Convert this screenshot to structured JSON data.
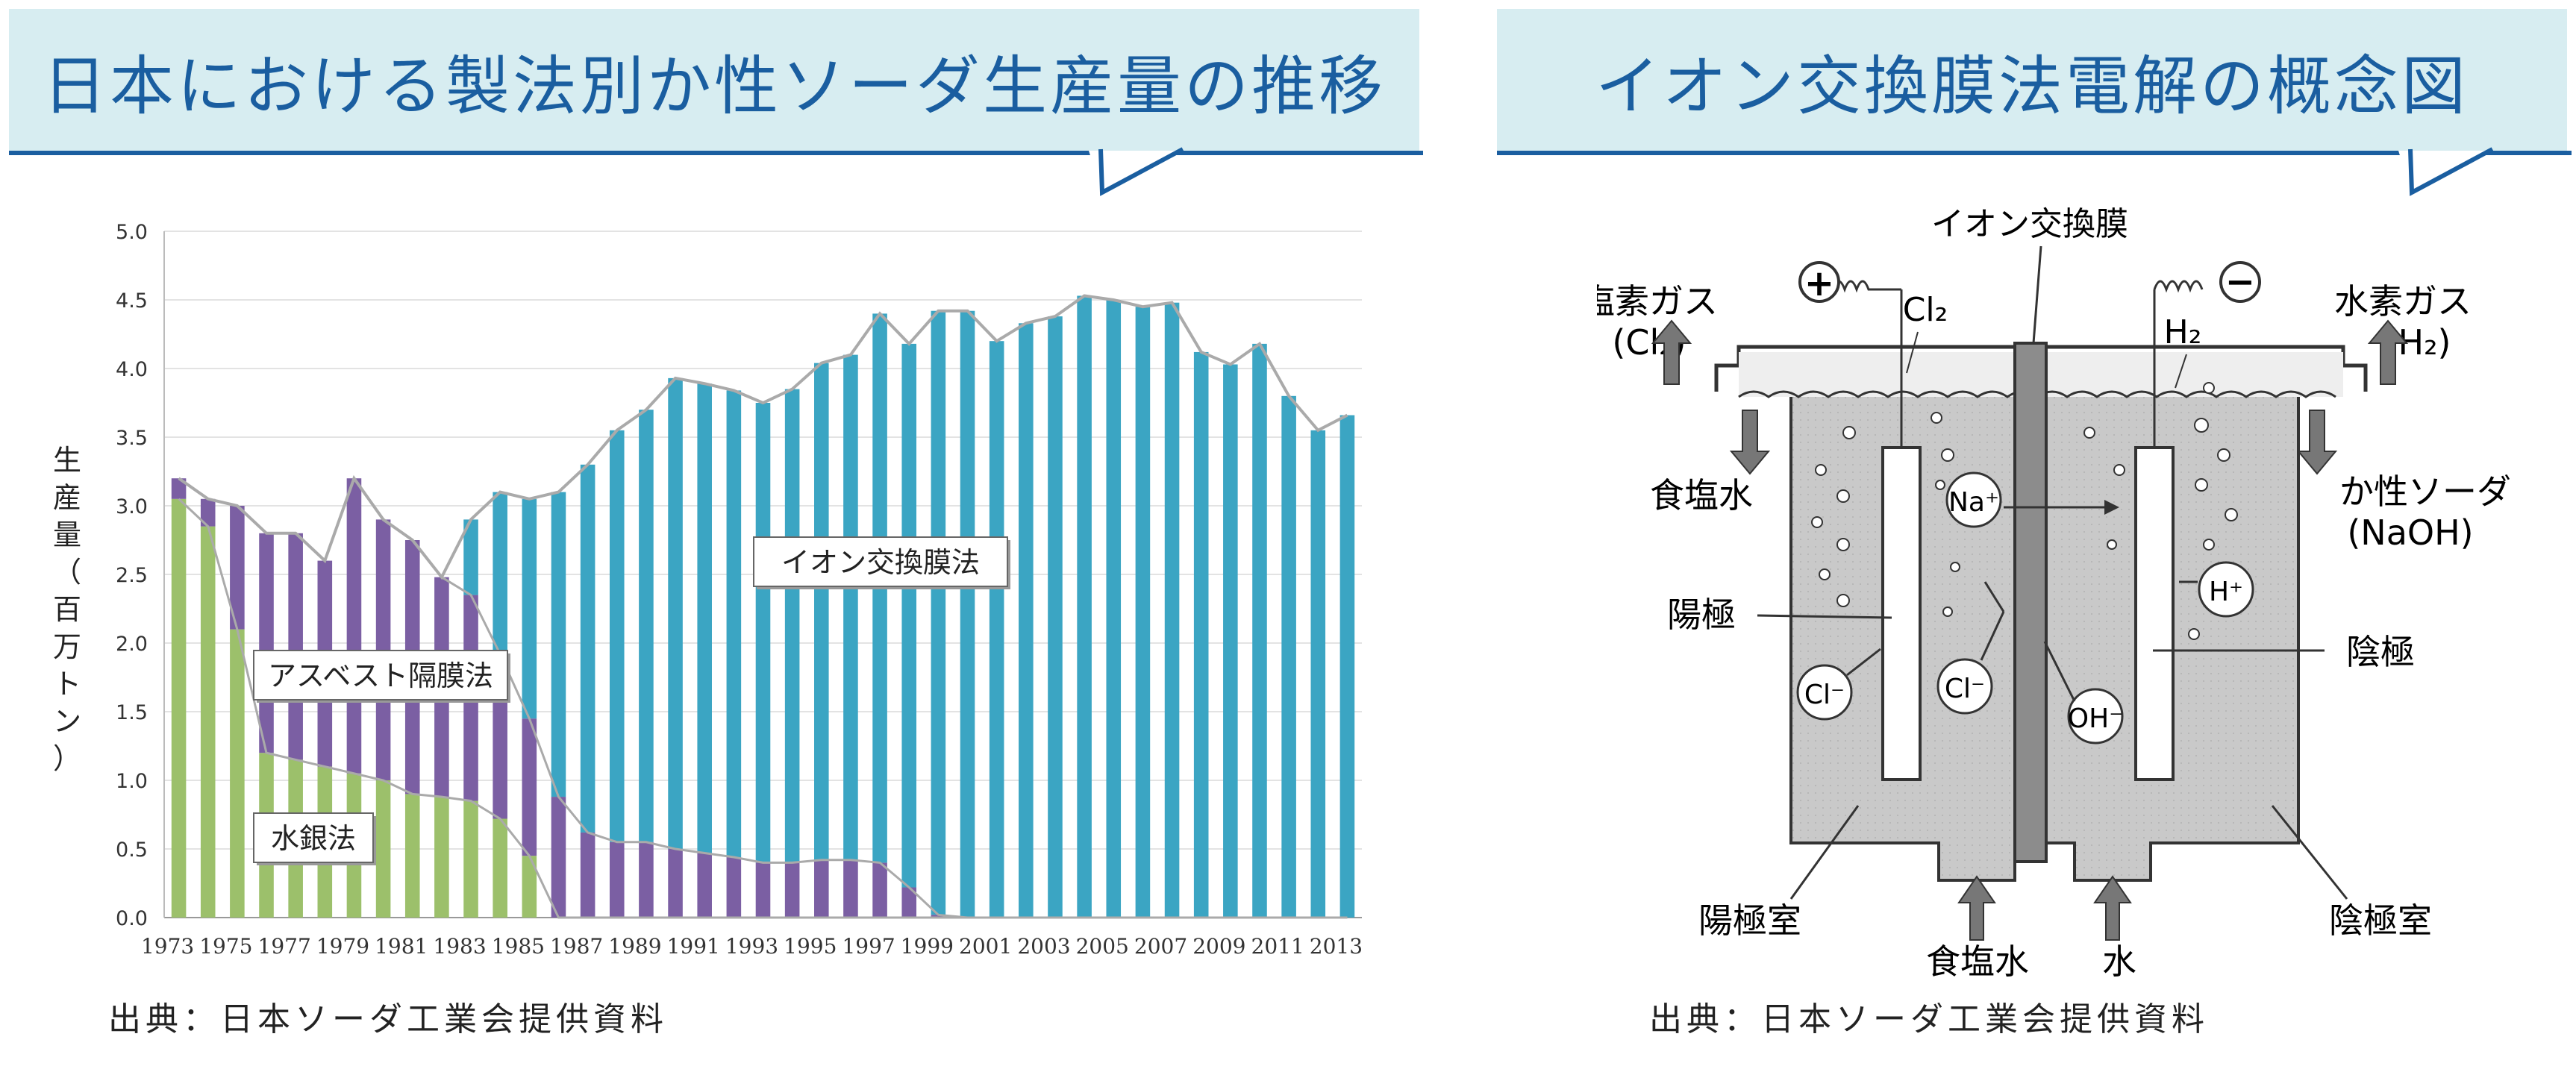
{
  "left_panel": {
    "title": "日本における製法別か性ソーダ生産量の推移",
    "source": "出典：日本ソーダ工業会提供資料"
  },
  "right_panel": {
    "title": "イオン交換膜法電解の概念図",
    "source": "出典：日本ソーダ工業会提供資料",
    "labels": {
      "membrane": "イオン交換膜",
      "chlorine_gas": "塩素ガス",
      "chlorine_formula": "(Cl₂)",
      "cl2": "Cl₂",
      "hydrogen_gas": "水素ガス",
      "hydrogen_formula": "(H₂)",
      "h2": "H₂",
      "brine_in_top": "食塩水",
      "caustic_soda": "か性ソーダ",
      "naoh": "(NaOH)",
      "anode": "陽極",
      "cathode": "陰極",
      "anode_chamber": "陽極室",
      "cathode_chamber": "陰極室",
      "brine_bottom": "食塩水",
      "water_bottom": "水",
      "na_ion": "Na⁺",
      "h_ion": "H⁺",
      "cl_ion_left": "Cl⁻",
      "cl_ion_mid": "Cl⁻",
      "oh_ion": "OH⁻",
      "plus": "+",
      "minus": "−"
    }
  },
  "chart_data": {
    "type": "bar",
    "stacked": true,
    "title": "日本における製法別か性ソーダ生産量の推移",
    "xlabel": "",
    "ylabel": "生産量（百万トン）",
    "ylim": [
      0,
      5.0
    ],
    "yticks": [
      "0.0",
      "0.5",
      "1.0",
      "1.5",
      "2.0",
      "2.5",
      "3.0",
      "3.5",
      "4.0",
      "4.5",
      "5.0"
    ],
    "grid": true,
    "categories": [
      "1973",
      "1974",
      "1975",
      "1976",
      "1977",
      "1978",
      "1979",
      "1980",
      "1981",
      "1982",
      "1983",
      "1984",
      "1985",
      "1986",
      "1987",
      "1988",
      "1989",
      "1990",
      "1991",
      "1992",
      "1993",
      "1994",
      "1995",
      "1996",
      "1997",
      "1998",
      "1999",
      "2000",
      "2001",
      "2002",
      "2003",
      "2004",
      "2005",
      "2006",
      "2007",
      "2008",
      "2009",
      "2010",
      "2011",
      "2012",
      "2013"
    ],
    "xtick_labels": [
      "1973",
      "1975",
      "1977",
      "1979",
      "1981",
      "1983",
      "1985",
      "1987",
      "1989",
      "1991",
      "1993",
      "1995",
      "1997",
      "1999",
      "2001",
      "2003",
      "2005",
      "2007",
      "2009",
      "2011",
      "2013"
    ],
    "series": [
      {
        "name": "水銀法",
        "color": "#9cc06b",
        "values": [
          3.05,
          2.85,
          2.1,
          1.2,
          1.15,
          1.1,
          1.05,
          1.0,
          0.9,
          0.88,
          0.85,
          0.72,
          0.45,
          0,
          0,
          0,
          0,
          0,
          0,
          0,
          0,
          0,
          0,
          0,
          0,
          0,
          0,
          0,
          0,
          0,
          0,
          0,
          0,
          0,
          0,
          0,
          0,
          0,
          0,
          0,
          0
        ]
      },
      {
        "name": "アスベスト隔膜法",
        "color": "#7b5fa3",
        "values": [
          0.15,
          0.2,
          0.9,
          1.6,
          1.65,
          1.5,
          2.15,
          1.9,
          1.85,
          1.6,
          1.5,
          1.2,
          1.0,
          0.88,
          0.62,
          0.55,
          0.55,
          0.5,
          0.47,
          0.44,
          0.4,
          0.4,
          0.42,
          0.42,
          0.4,
          0.22,
          0.02,
          0,
          0,
          0,
          0,
          0,
          0,
          0,
          0,
          0,
          0,
          0,
          0,
          0,
          0
        ]
      },
      {
        "name": "イオン交換膜法",
        "color": "#3ba5c3",
        "values": [
          0,
          0,
          0,
          0,
          0,
          0,
          0,
          0,
          0,
          0,
          0.55,
          1.18,
          1.6,
          2.22,
          2.68,
          3.0,
          3.15,
          3.43,
          3.42,
          3.4,
          3.35,
          3.45,
          3.62,
          3.68,
          4.0,
          3.96,
          4.4,
          4.42,
          4.2,
          4.33,
          4.38,
          4.53,
          4.5,
          4.45,
          4.48,
          4.12,
          4.03,
          4.18,
          3.8,
          3.55,
          3.66
        ]
      }
    ],
    "annotations": [
      "イオン交換膜法",
      "アスベスト隔膜法",
      "水銀法"
    ]
  }
}
